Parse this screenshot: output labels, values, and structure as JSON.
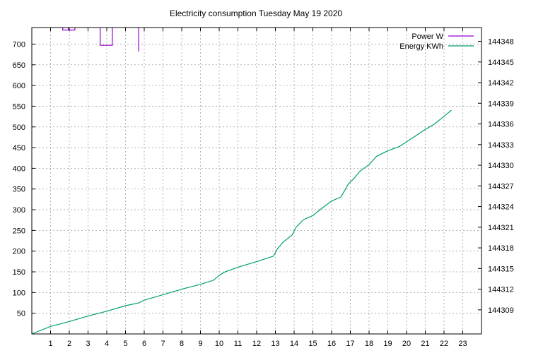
{
  "chart_data": {
    "type": "line",
    "title": "Electricity consumption Tuesday May 19 2020",
    "xlabel": "",
    "ylabel": "",
    "xlim": [
      0,
      24
    ],
    "ylim": [
      0,
      740
    ],
    "y2lim": [
      144305.5,
      144350
    ],
    "x_ticks": [
      1,
      2,
      3,
      4,
      5,
      6,
      7,
      8,
      9,
      10,
      11,
      12,
      13,
      14,
      15,
      16,
      17,
      18,
      19,
      20,
      21,
      22,
      23
    ],
    "y_ticks": [
      50,
      100,
      150,
      200,
      250,
      300,
      350,
      400,
      450,
      500,
      550,
      600,
      650,
      700
    ],
    "y2_ticks": [
      144309,
      144312,
      144315,
      144318,
      144321,
      144324,
      144327,
      144330,
      144333,
      144336,
      144339,
      144342,
      144345,
      144348
    ],
    "grid": true,
    "legend_position": "top-right",
    "series": [
      {
        "name": "Power W",
        "axis": "y",
        "style": "steps",
        "color": "#9400d3",
        "segments": [
          [
            [
              1.65,
              740
            ],
            [
              1.65,
              734
            ],
            [
              2.3,
              734
            ],
            [
              2.3,
              740
            ]
          ],
          [
            [
              1.95,
              734
            ],
            [
              1.95,
              740
            ]
          ],
          [
            [
              3.65,
              740
            ],
            [
              3.65,
              697
            ],
            [
              4.3,
              697
            ],
            [
              4.3,
              740
            ]
          ],
          [
            [
              5.7,
              740
            ],
            [
              5.7,
              682
            ]
          ]
        ]
      },
      {
        "name": "Energy KWh",
        "axis": "y2",
        "style": "line",
        "color": "#009e73",
        "x": [
          0,
          1,
          2,
          3,
          4,
          5,
          5.7,
          6,
          7,
          8,
          9,
          9.7,
          10,
          10.3,
          11,
          12,
          12.9,
          13.1,
          13.4,
          13.9,
          14.1,
          14.5,
          15,
          15.5,
          16,
          16.5,
          16.9,
          17.2,
          17.5,
          18,
          18.4,
          19,
          19.6,
          20,
          20.5,
          21,
          21.5,
          21.9,
          22.4
        ],
        "values": [
          144305.5,
          144306.6,
          144307.3,
          144308.1,
          144308.8,
          144309.6,
          144310,
          144310.4,
          144311.2,
          144312,
          144312.7,
          144313.3,
          144314,
          144314.5,
          144315.2,
          144316,
          144316.8,
          144317.8,
          144318.8,
          144319.9,
          144321,
          144322.1,
          144322.7,
          144323.8,
          144324.8,
          144325.4,
          144327.3,
          144328.1,
          144329.1,
          144330.1,
          144331.3,
          144332.1,
          144332.7,
          144333.4,
          144334.3,
          144335.2,
          144336,
          144336.9,
          144338
        ]
      }
    ]
  }
}
